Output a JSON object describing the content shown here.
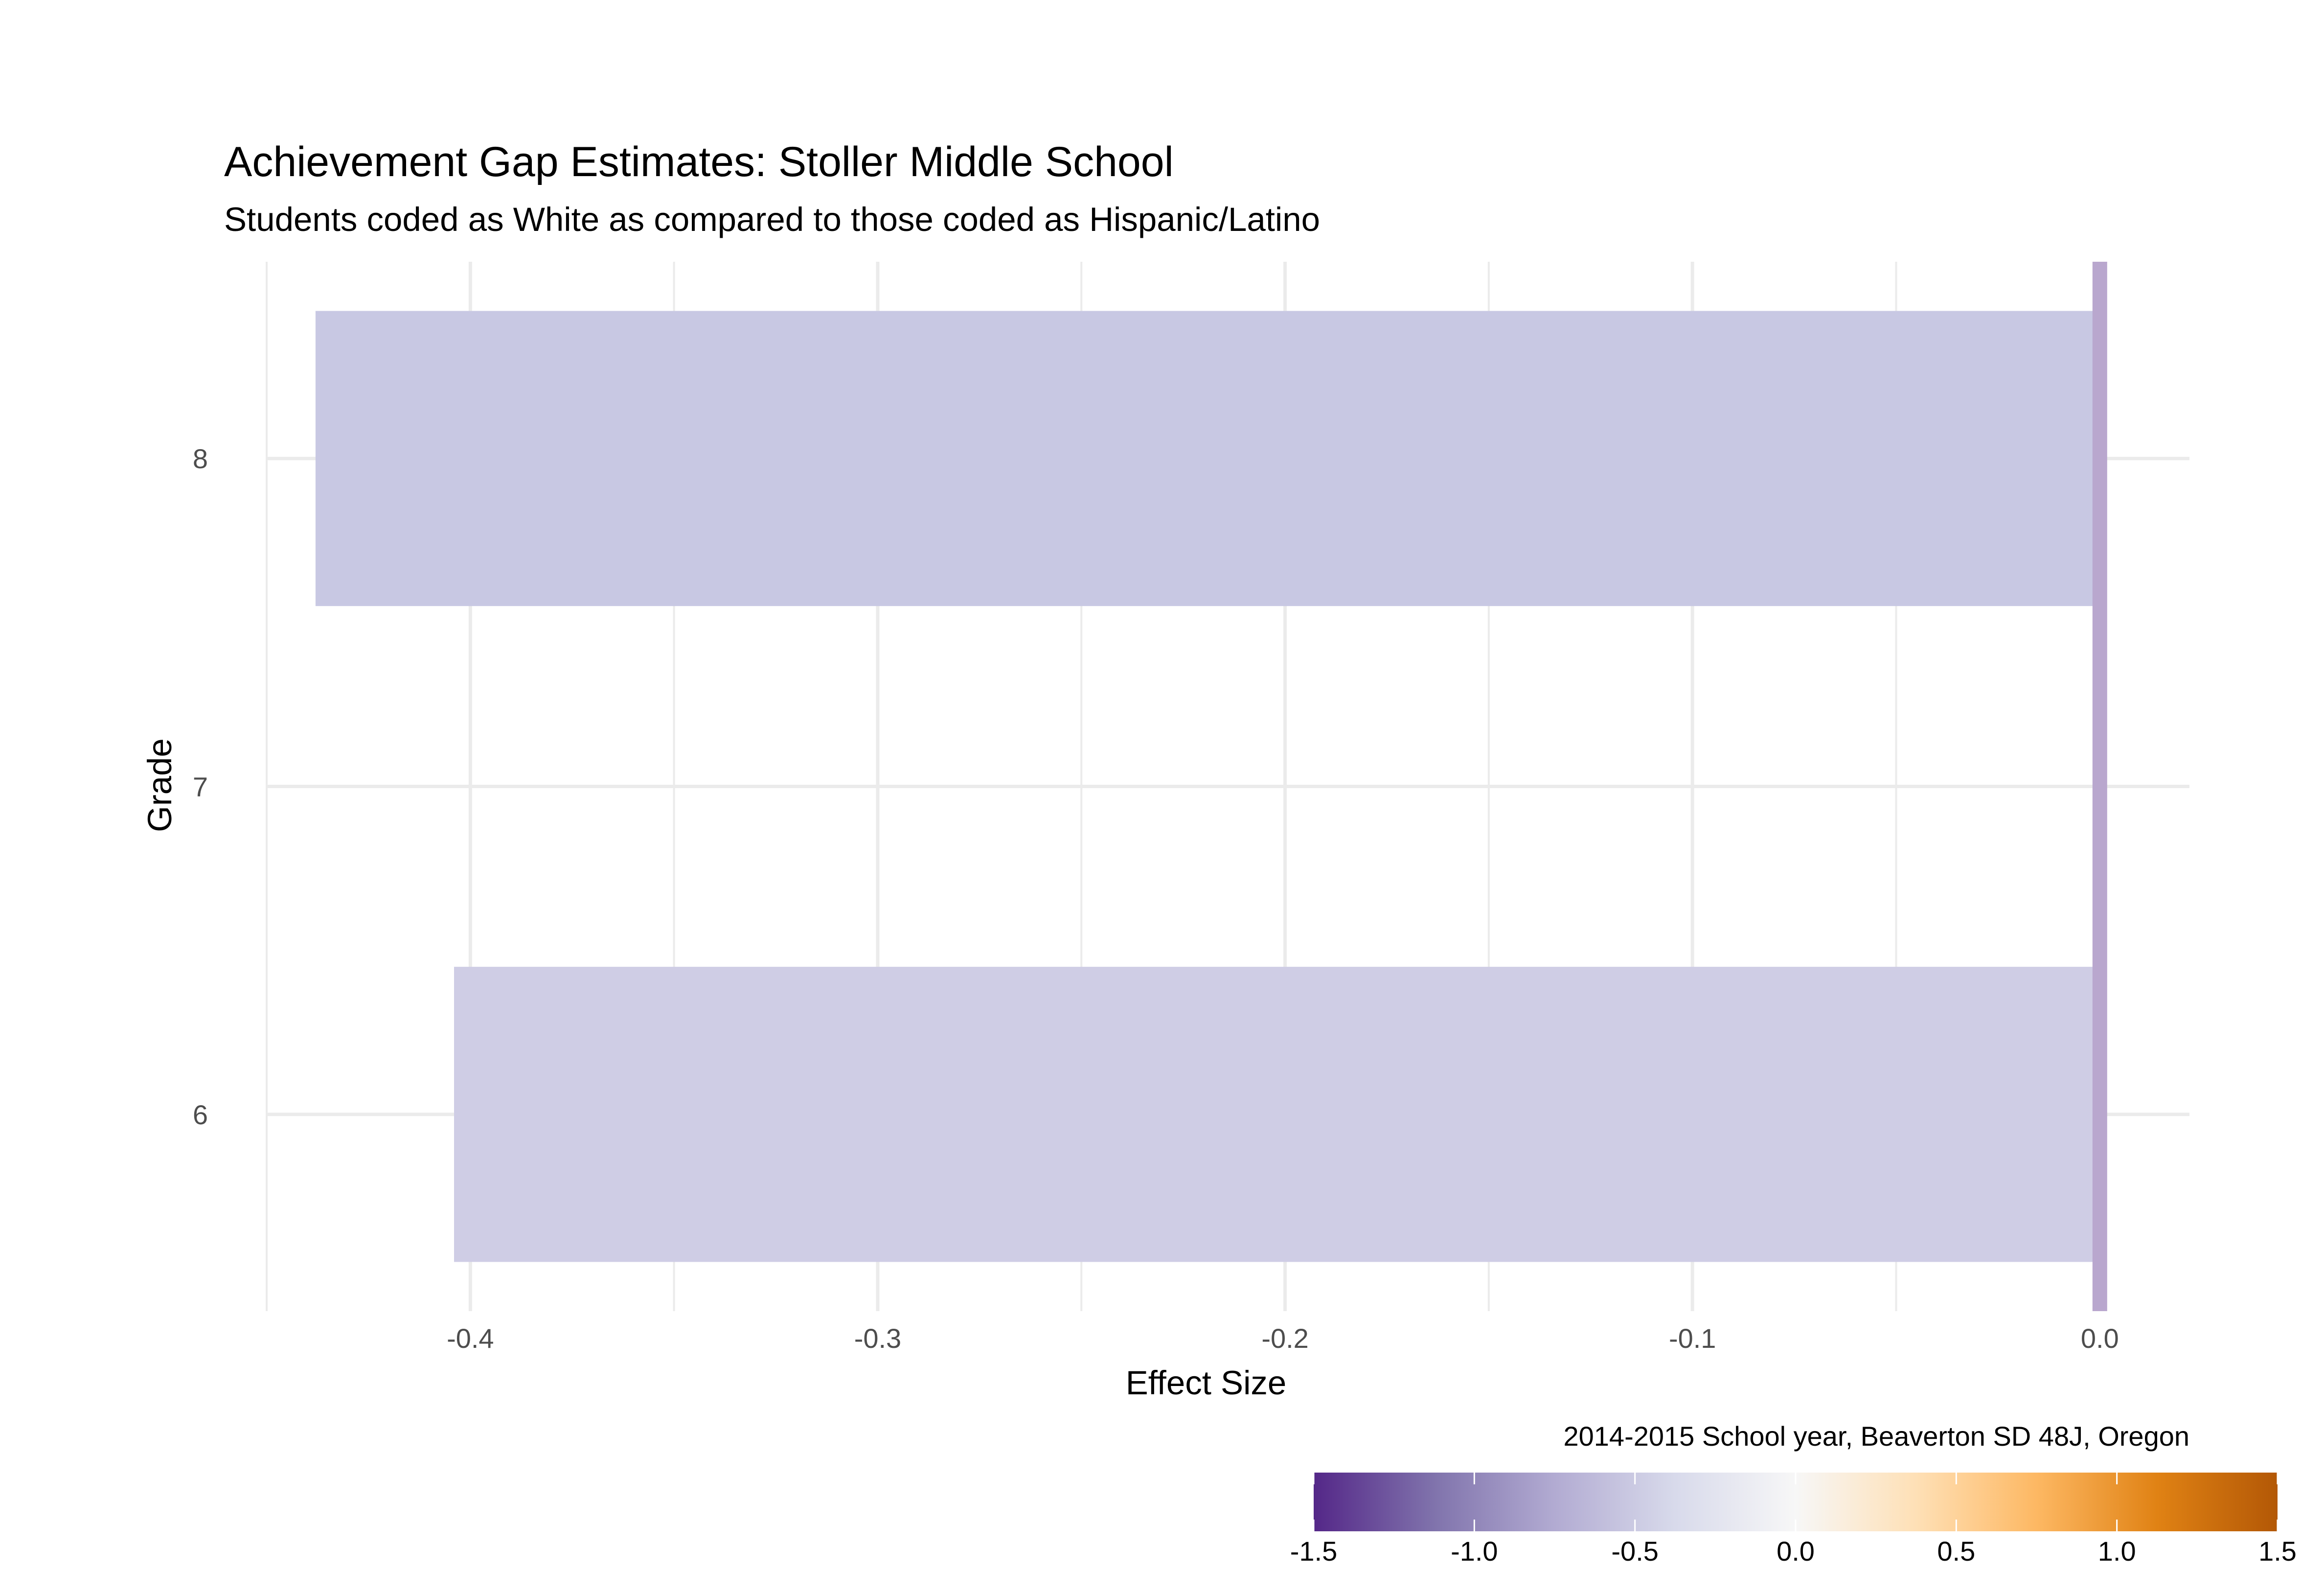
{
  "chart_data": {
    "type": "bar",
    "orientation": "horizontal",
    "title": "Achievement Gap Estimates: Stoller Middle School",
    "subtitle": "Students coded as White as compared to those coded as Hispanic/Latino",
    "xlabel": "Effect Size",
    "ylabel": "Grade",
    "caption": "2014-2015 School year, Beaverton SD 48J, Oregon",
    "categories": [
      "6",
      "7",
      "8"
    ],
    "x_ticks": [
      "-0.4",
      "-0.3",
      "-0.2",
      "-0.1",
      "0.0"
    ],
    "xlim": [
      -0.45,
      0.022
    ],
    "bars": [
      {
        "grade": "8",
        "value": -0.438,
        "color": "#c8c8e3"
      },
      {
        "grade": "6",
        "value": -0.404,
        "color": "#cfcde5"
      }
    ],
    "reference_line": {
      "value": 0.0,
      "color": "#b9a7ce"
    },
    "grid": true,
    "legend": {
      "type": "colorbar",
      "placement": "bottom-right",
      "range": [
        -1.5,
        1.5
      ],
      "ticks": [
        "-1.5",
        "-1.0",
        "-0.5",
        "0.0",
        "0.5",
        "1.0",
        "1.5"
      ],
      "colors": [
        "#542788",
        "#8073ac",
        "#b2abd2",
        "#d8daeb",
        "#f7f7f7",
        "#fee0b6",
        "#fdb863",
        "#e08214",
        "#b35806"
      ]
    }
  }
}
